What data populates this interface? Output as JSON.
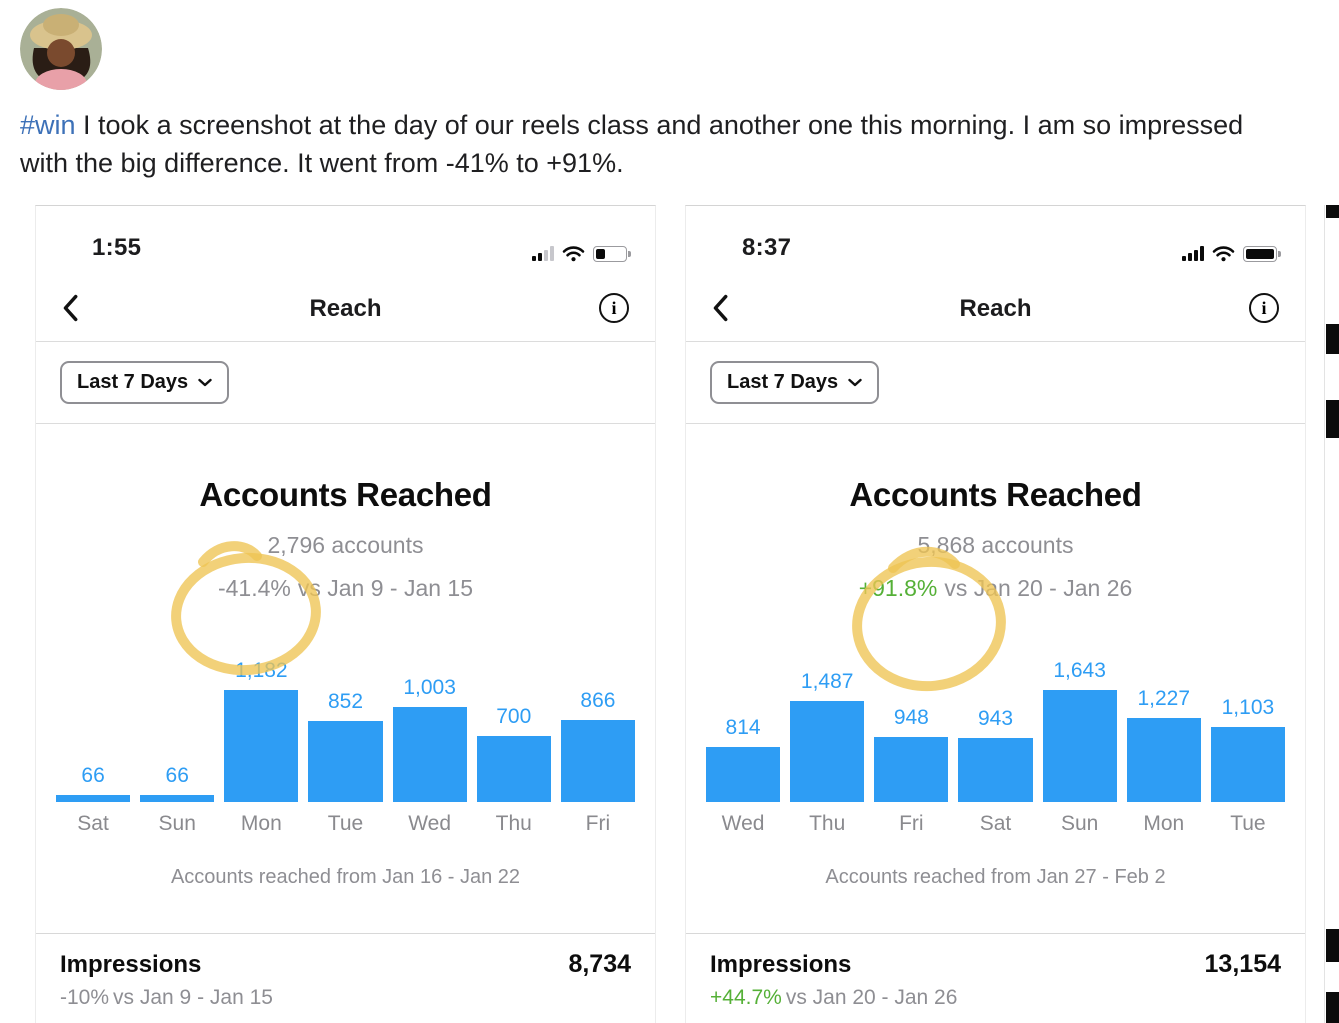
{
  "post": {
    "hashtag": "#win",
    "text": " I took a screenshot at the day of our reels class and another one this morning. I am so impressed with the big difference. It went from -41% to +91%."
  },
  "icons": {
    "info": "i"
  },
  "colors": {
    "bar_blue": "#2e9df4",
    "positive_green": "#55b037",
    "neutral_gray": "#8e8e93",
    "marker_yellow": "#eec453",
    "hashtag_blue": "#3d71b8"
  },
  "screenshots": [
    {
      "status_bar": {
        "time": "1:55"
      },
      "nav": {
        "title": "Reach"
      },
      "filter_label": "Last 7 Days",
      "chart_data": {
        "type": "bar",
        "title": "Accounts Reached",
        "subtitle": "2,796 accounts",
        "change": "-41.4%",
        "change_color": "#8e8e93",
        "comparison": "vs Jan 9 - Jan 15",
        "categories": [
          "Sat",
          "Sun",
          "Mon",
          "Tue",
          "Wed",
          "Thu",
          "Fri"
        ],
        "values": [
          66,
          66,
          1182,
          852,
          1003,
          700,
          866
        ],
        "value_labels": [
          "66",
          "66",
          "1,182",
          "852",
          "1,003",
          "700",
          "866"
        ],
        "ylim": [
          0,
          1182
        ],
        "bar_color": "#2e9df4",
        "caption": "Accounts reached from Jan 16 - Jan 22"
      },
      "impressions": {
        "label": "Impressions",
        "value": "8,734",
        "change": "-10%",
        "change_color": "#8e8e93",
        "comparison": "vs Jan 9 - Jan 15"
      }
    },
    {
      "status_bar": {
        "time": "8:37"
      },
      "nav": {
        "title": "Reach"
      },
      "filter_label": "Last 7 Days",
      "chart_data": {
        "type": "bar",
        "title": "Accounts Reached",
        "subtitle": "5,868 accounts",
        "change": "+91.8%",
        "change_color": "#55b037",
        "comparison": "vs Jan 20 - Jan 26",
        "categories": [
          "Wed",
          "Thu",
          "Fri",
          "Sat",
          "Sun",
          "Mon",
          "Tue"
        ],
        "values": [
          814,
          1487,
          948,
          943,
          1643,
          1227,
          1103
        ],
        "value_labels": [
          "814",
          "1,487",
          "948",
          "943",
          "1,643",
          "1,227",
          "1,103"
        ],
        "ylim": [
          0,
          1643
        ],
        "bar_color": "#2e9df4",
        "caption": "Accounts reached from Jan 27 - Feb 2"
      },
      "impressions": {
        "label": "Impressions",
        "value": "13,154",
        "change": "+44.7%",
        "change_color": "#55b037",
        "comparison": "vs Jan 20 - Jan 26"
      }
    }
  ]
}
